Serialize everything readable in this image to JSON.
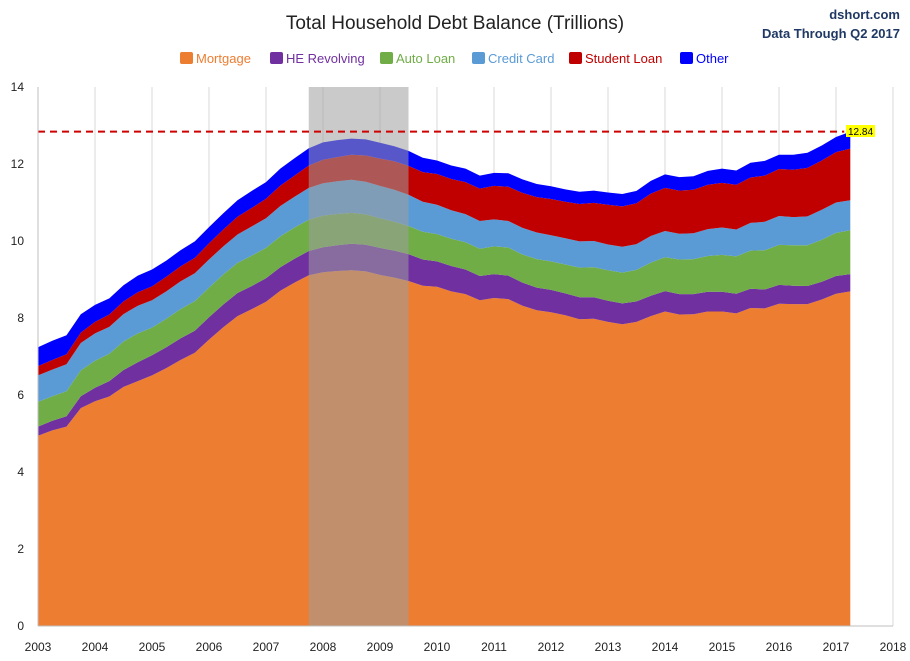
{
  "title": "Total Household Debt Balance (Trillions)",
  "source": "dshort.com",
  "subtitle": "Data Through Q2 2017",
  "latest_label": "12.84",
  "colors": {
    "Mortgage": "#ed7d31",
    "HE Revolving": "#7030a0",
    "Auto Loan": "#70ad47",
    "Credit Card": "#5b9bd5",
    "Student Loan": "#c00000",
    "Other": "#0000ff",
    "recession": "#9e9e9e",
    "reference": "#d00000",
    "flag": "#ffff00"
  },
  "chart_data": {
    "type": "area",
    "stacked": true,
    "title": "Total Household Debt Balance (Trillions)",
    "xlabel": "",
    "ylabel": "",
    "xlim": [
      2003,
      2018
    ],
    "ylim": [
      0,
      14
    ],
    "x_ticks": [
      "2003",
      "2004",
      "2005",
      "2006",
      "2007",
      "2008",
      "2009",
      "2010",
      "2011",
      "2012",
      "2013",
      "2014",
      "2015",
      "2016",
      "2017",
      "2018"
    ],
    "y_ticks": [
      "0",
      "2",
      "4",
      "6",
      "8",
      "10",
      "12",
      "14"
    ],
    "legend_position": "top",
    "grid": "vertical",
    "recession": [
      2007.75,
      2009.5
    ],
    "reference_line": 12.84,
    "x": [
      2003.0,
      2003.25,
      2003.5,
      2003.75,
      2004.0,
      2004.25,
      2004.5,
      2004.75,
      2005.0,
      2005.25,
      2005.5,
      2005.75,
      2006.0,
      2006.25,
      2006.5,
      2006.75,
      2007.0,
      2007.25,
      2007.5,
      2007.75,
      2008.0,
      2008.25,
      2008.5,
      2008.75,
      2009.0,
      2009.25,
      2009.5,
      2009.75,
      2010.0,
      2010.25,
      2010.5,
      2010.75,
      2011.0,
      2011.25,
      2011.5,
      2011.75,
      2012.0,
      2012.25,
      2012.5,
      2012.75,
      2013.0,
      2013.25,
      2013.5,
      2013.75,
      2014.0,
      2014.25,
      2014.5,
      2014.75,
      2015.0,
      2015.25,
      2015.5,
      2015.75,
      2016.0,
      2016.25,
      2016.5,
      2016.75,
      2017.0,
      2017.25
    ],
    "series": [
      {
        "name": "Mortgage",
        "values": [
          4.94,
          5.08,
          5.18,
          5.66,
          5.84,
          5.96,
          6.21,
          6.36,
          6.51,
          6.7,
          6.91,
          7.1,
          7.44,
          7.76,
          8.05,
          8.23,
          8.42,
          8.71,
          8.92,
          9.11,
          9.19,
          9.22,
          9.24,
          9.21,
          9.12,
          9.05,
          8.96,
          8.84,
          8.81,
          8.69,
          8.62,
          8.46,
          8.52,
          8.49,
          8.32,
          8.2,
          8.15,
          8.07,
          7.97,
          7.98,
          7.9,
          7.84,
          7.9,
          8.05,
          8.17,
          8.09,
          8.1,
          8.17,
          8.17,
          8.12,
          8.26,
          8.25,
          8.37,
          8.36,
          8.36,
          8.48,
          8.63,
          8.69
        ]
      },
      {
        "name": "HE Revolving",
        "values": [
          0.24,
          0.25,
          0.27,
          0.31,
          0.35,
          0.4,
          0.44,
          0.49,
          0.52,
          0.54,
          0.56,
          0.57,
          0.58,
          0.59,
          0.6,
          0.6,
          0.61,
          0.61,
          0.62,
          0.63,
          0.65,
          0.67,
          0.69,
          0.69,
          0.7,
          0.7,
          0.7,
          0.68,
          0.66,
          0.66,
          0.64,
          0.63,
          0.62,
          0.61,
          0.6,
          0.59,
          0.58,
          0.57,
          0.57,
          0.56,
          0.55,
          0.54,
          0.53,
          0.53,
          0.53,
          0.53,
          0.52,
          0.51,
          0.51,
          0.51,
          0.5,
          0.49,
          0.49,
          0.48,
          0.47,
          0.46,
          0.46,
          0.45
        ]
      },
      {
        "name": "Auto Loan",
        "values": [
          0.64,
          0.64,
          0.65,
          0.67,
          0.7,
          0.71,
          0.74,
          0.75,
          0.72,
          0.74,
          0.76,
          0.77,
          0.77,
          0.78,
          0.78,
          0.79,
          0.79,
          0.8,
          0.81,
          0.81,
          0.82,
          0.81,
          0.8,
          0.79,
          0.77,
          0.75,
          0.73,
          0.72,
          0.71,
          0.71,
          0.71,
          0.71,
          0.72,
          0.73,
          0.73,
          0.74,
          0.74,
          0.75,
          0.77,
          0.78,
          0.79,
          0.8,
          0.82,
          0.86,
          0.88,
          0.9,
          0.91,
          0.93,
          0.96,
          0.97,
          0.99,
          1.02,
          1.04,
          1.05,
          1.06,
          1.09,
          1.12,
          1.14
        ]
      },
      {
        "name": "Credit Card",
        "values": [
          0.69,
          0.69,
          0.7,
          0.71,
          0.71,
          0.7,
          0.71,
          0.72,
          0.71,
          0.71,
          0.72,
          0.72,
          0.73,
          0.73,
          0.74,
          0.76,
          0.77,
          0.79,
          0.8,
          0.83,
          0.84,
          0.85,
          0.86,
          0.85,
          0.84,
          0.83,
          0.81,
          0.78,
          0.76,
          0.74,
          0.73,
          0.72,
          0.7,
          0.69,
          0.69,
          0.69,
          0.68,
          0.68,
          0.68,
          0.68,
          0.67,
          0.67,
          0.67,
          0.69,
          0.68,
          0.67,
          0.67,
          0.7,
          0.71,
          0.7,
          0.72,
          0.74,
          0.75,
          0.73,
          0.75,
          0.78,
          0.79,
          0.78
        ]
      },
      {
        "name": "Student Loan",
        "values": [
          0.24,
          0.25,
          0.26,
          0.27,
          0.3,
          0.32,
          0.33,
          0.35,
          0.36,
          0.38,
          0.39,
          0.4,
          0.42,
          0.44,
          0.46,
          0.48,
          0.51,
          0.53,
          0.55,
          0.58,
          0.61,
          0.63,
          0.65,
          0.68,
          0.71,
          0.74,
          0.75,
          0.77,
          0.8,
          0.81,
          0.83,
          0.84,
          0.87,
          0.89,
          0.91,
          0.92,
          0.94,
          0.95,
          0.97,
          0.99,
          1.03,
          1.05,
          1.06,
          1.1,
          1.12,
          1.12,
          1.13,
          1.15,
          1.16,
          1.16,
          1.18,
          1.2,
          1.22,
          1.23,
          1.26,
          1.28,
          1.31,
          1.34
        ]
      },
      {
        "name": "Other",
        "values": [
          0.49,
          0.5,
          0.49,
          0.48,
          0.44,
          0.42,
          0.42,
          0.43,
          0.44,
          0.42,
          0.42,
          0.43,
          0.42,
          0.42,
          0.43,
          0.44,
          0.43,
          0.44,
          0.45,
          0.45,
          0.45,
          0.44,
          0.42,
          0.42,
          0.41,
          0.39,
          0.39,
          0.37,
          0.35,
          0.35,
          0.35,
          0.34,
          0.34,
          0.35,
          0.35,
          0.34,
          0.33,
          0.32,
          0.32,
          0.32,
          0.32,
          0.32,
          0.32,
          0.33,
          0.35,
          0.35,
          0.35,
          0.36,
          0.37,
          0.37,
          0.38,
          0.38,
          0.37,
          0.39,
          0.39,
          0.39,
          0.39,
          0.44
        ]
      }
    ]
  }
}
